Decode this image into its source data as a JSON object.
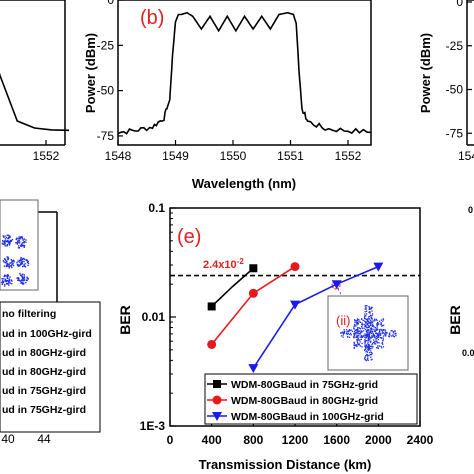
{
  "chart_data": [
    {
      "type": "line",
      "panel": "top-left (cropped)",
      "xticks": [
        "1552"
      ],
      "x_unit": "nm",
      "series": [
        {
          "x": [
            1550.6,
            1550.9,
            1551.2,
            1551.5,
            1551.8,
            1552.1,
            1552.4
          ],
          "y": [
            -10,
            -10,
            -42,
            -68,
            -72,
            -73,
            -74
          ]
        }
      ]
    },
    {
      "type": "line",
      "panel_label": "(b)",
      "xlabel": "Wavelength (nm)",
      "ylabel": "Power (dBm)",
      "xlim": [
        1548,
        1552.4
      ],
      "ylim": [
        -80,
        0
      ],
      "xticks": [
        "1548",
        "1549",
        "1550",
        "1551",
        "1552"
      ],
      "yticks": [
        "0",
        "-25",
        "-50",
        "-75"
      ],
      "series": [
        {
          "x": [
            1548.0,
            1548.3,
            1548.6,
            1548.8,
            1548.9,
            1548.95,
            1549.0,
            1549.05,
            1549.1,
            1549.2,
            1549.3,
            1549.45,
            1549.6,
            1549.75,
            1549.9,
            1550.05,
            1550.2,
            1550.35,
            1550.5,
            1550.65,
            1550.8,
            1550.95,
            1551.05,
            1551.1,
            1551.15,
            1551.2,
            1551.3,
            1551.6,
            1552.0,
            1552.4
          ],
          "y": [
            -73,
            -72,
            -70,
            -65,
            -55,
            -30,
            -12,
            -8,
            -8,
            -7,
            -9,
            -16,
            -9,
            -17,
            -9,
            -17,
            -9,
            -16,
            -9,
            -16,
            -8,
            -7,
            -8,
            -13,
            -40,
            -60,
            -67,
            -71,
            -72,
            -73
          ]
        }
      ]
    },
    {
      "type": "line",
      "panel": "top-right (cropped)",
      "xticks": [
        "154"
      ],
      "ylabel": "Power (dBm)",
      "yticks": [
        "0",
        "-25",
        "-50",
        "-75"
      ]
    },
    {
      "type": "scatter",
      "panel": "bottom-left (cropped)",
      "xticks": [
        "40",
        "44"
      ],
      "legend": [
        "no filtering",
        "ud in 100GHz-gird",
        "ud in 80GHz-gird",
        "ud in 80GHz-gird",
        "ud in 75GHz-gird",
        "ud in 75GHz-gird"
      ]
    },
    {
      "type": "line",
      "panel_label": "(e)",
      "xlabel": "Transmission Distance (km)",
      "ylabel": "BER",
      "y_scale": "log",
      "xlim": [
        0,
        2400
      ],
      "ylim": [
        0.001,
        0.1
      ],
      "xticks": [
        "0",
        "400",
        "800",
        "1200",
        "1600",
        "2000",
        "2400"
      ],
      "yticks": [
        "0.1",
        "0.01",
        "1E-3"
      ],
      "threshold": {
        "label": "2.4x10",
        "exponent": "-2",
        "value": 0.024
      },
      "inset_label": "(ii)",
      "legend_position": "bottom-right",
      "series": [
        {
          "name": "WDM-80GBaud in 75GHz-grid",
          "color": "#000000",
          "marker": "square",
          "x": [
            400,
            600,
            800
          ],
          "y": [
            0.0125,
            0.019,
            0.028
          ]
        },
        {
          "name": "WDM-80GBaud in 80GHz-grid",
          "color": "#e8191b",
          "marker": "circle",
          "x": [
            400,
            800,
            1200
          ],
          "y": [
            0.0056,
            0.0165,
            0.029
          ]
        },
        {
          "name": "WDM-80GBaud in 100GHz-grid",
          "color": "#1a1aee",
          "marker": "triangle-down",
          "x": [
            800,
            1200,
            1600,
            2000
          ],
          "y": [
            0.0034,
            0.013,
            0.02,
            0.029
          ]
        }
      ]
    },
    {
      "type": "line",
      "panel": "bottom-right (cropped)",
      "ylabel": "BER",
      "yticks": [
        "0",
        "0.0"
      ]
    }
  ]
}
